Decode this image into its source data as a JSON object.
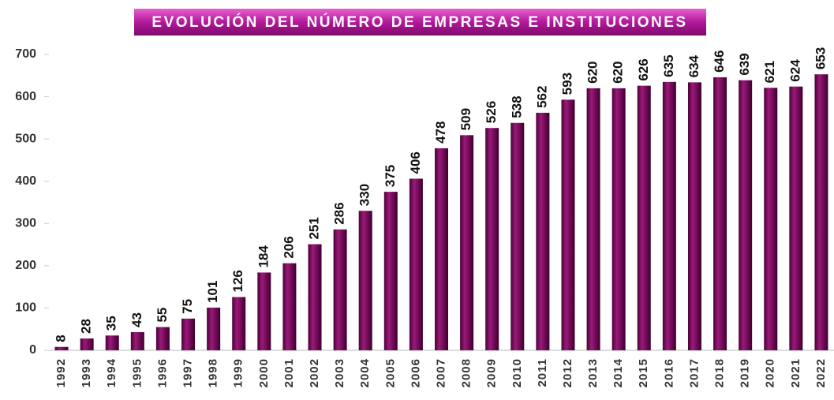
{
  "chart_data": {
    "type": "bar",
    "title": "EVOLUCIÓN DEL NÚMERO DE EMPRESAS E INSTITUCIONES",
    "categories": [
      "1992",
      "1993",
      "1994",
      "1995",
      "1996",
      "1997",
      "1998",
      "1999",
      "2000",
      "2001",
      "2002",
      "2003",
      "2004",
      "2005",
      "2006",
      "2007",
      "2008",
      "2009",
      "2010",
      "2011",
      "2012",
      "2013",
      "2014",
      "2015",
      "2016",
      "2017",
      "2018",
      "2019",
      "2020",
      "2021",
      "2022"
    ],
    "values": [
      8,
      28,
      35,
      43,
      55,
      75,
      101,
      126,
      184,
      206,
      251,
      286,
      330,
      375,
      406,
      478,
      509,
      526,
      538,
      562,
      593,
      620,
      620,
      626,
      635,
      634,
      646,
      639,
      621,
      624,
      653
    ],
    "color": "#7a0d5e",
    "ylim": [
      0,
      700
    ],
    "yticks": [
      0,
      100,
      200,
      300,
      400,
      500,
      600,
      700
    ],
    "grid": false
  }
}
